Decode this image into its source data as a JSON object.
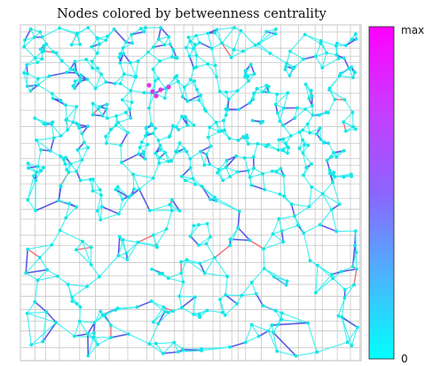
{
  "title": "Nodes colored by betweenness centrality",
  "colorbar": {
    "max_label": "max",
    "min_label": "0",
    "colors": [
      "#00ffff",
      "#4bb4ff",
      "#8c64ff",
      "#c83cff",
      "#ff00ff"
    ]
  },
  "colors": {
    "grid": "#c8c8c8",
    "node": "#14e6e6",
    "edge_low": "#3ff0f0",
    "edge_mid": "#5a5ae6",
    "edge_high": "#f06e78",
    "hub": "#e632e6"
  }
}
